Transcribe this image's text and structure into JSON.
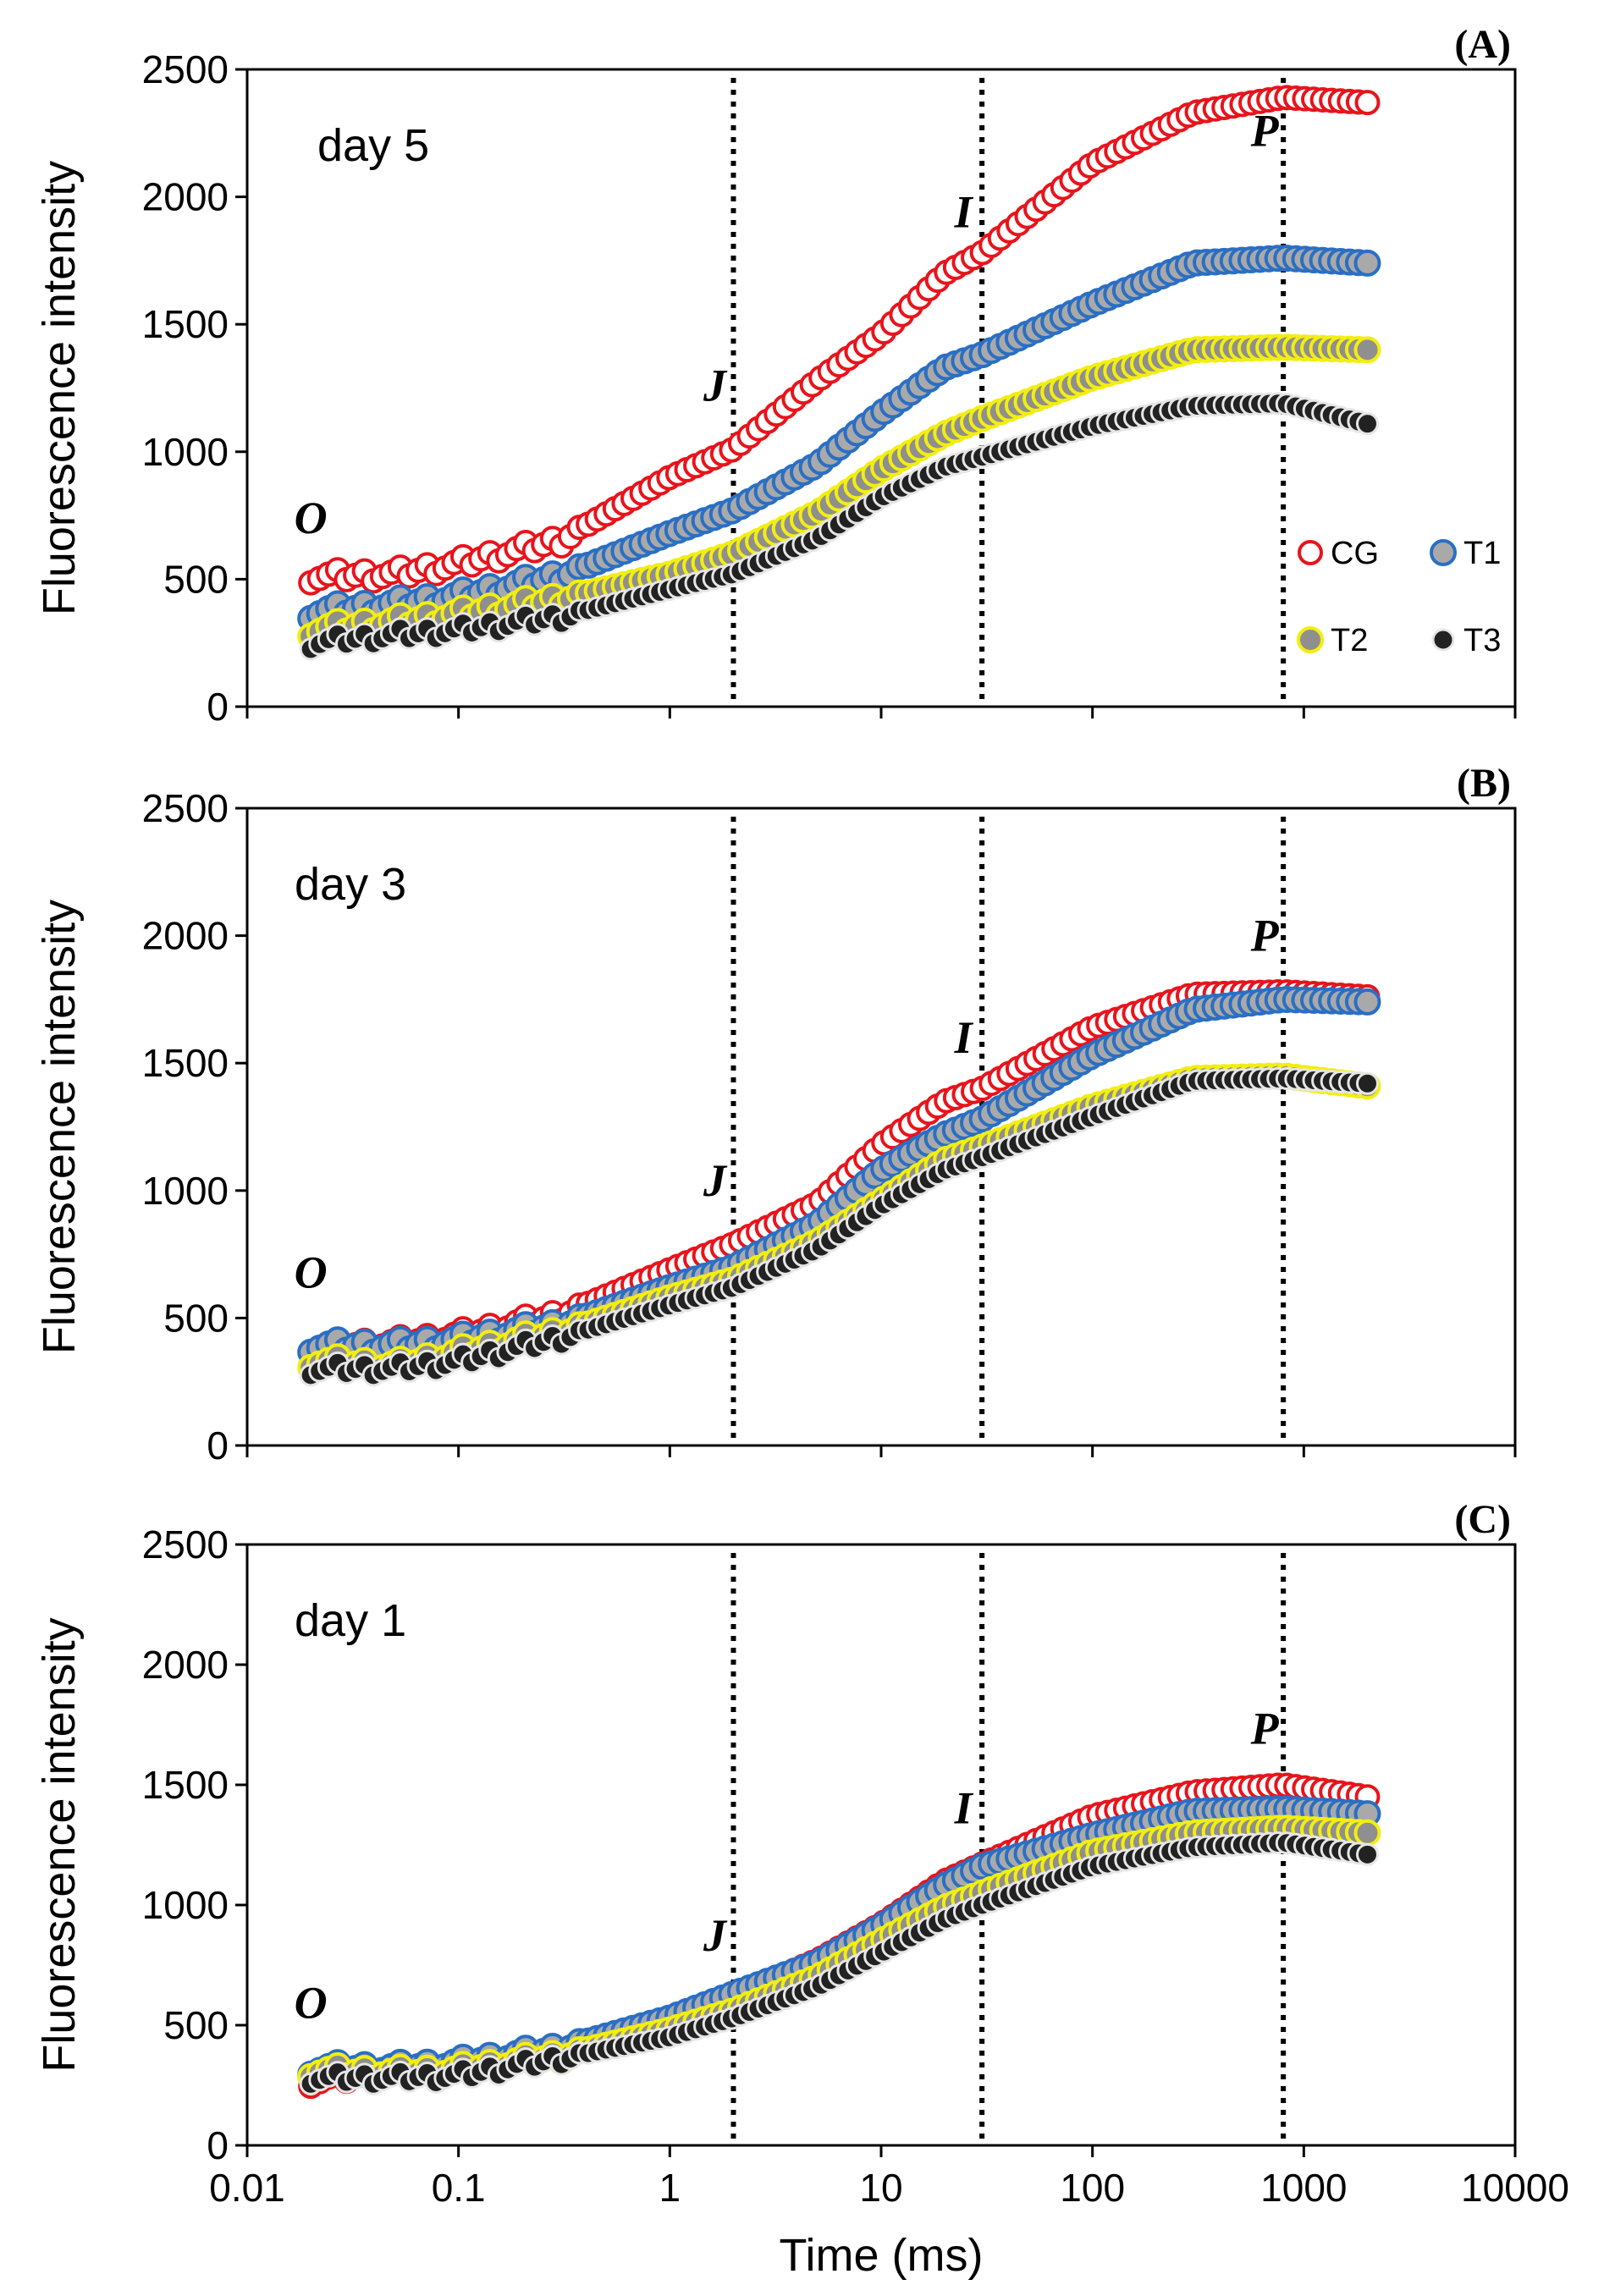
{
  "chart_data": [
    {
      "type": "scatter",
      "panel_label": "(A)",
      "day_label": "day 5",
      "ylabel": "Fluorescence intensity",
      "xlabel": "",
      "xscale": "log",
      "xlim": [
        0.01,
        10000
      ],
      "ylim": [
        0,
        2500
      ],
      "yticks": [
        "0",
        "500",
        "1000",
        "1500",
        "2000",
        "2500"
      ],
      "xticks": [],
      "phase_markers": [
        {
          "label": "O",
          "x": 0.02,
          "y": 680
        },
        {
          "label": "J",
          "x": 2,
          "y": 1200
        },
        {
          "label": "I",
          "x": 30,
          "y": 1880
        },
        {
          "label": "P",
          "x": 800,
          "y": 2200
        }
      ],
      "vlines_ms": [
        2,
        30,
        800
      ],
      "legend": {
        "position": "right",
        "entries": [
          "CG",
          "T1",
          "T2",
          "T3"
        ]
      },
      "series": [
        {
          "name": "CG",
          "style": "open-red",
          "anchors": [
            [
              0.02,
              510
            ],
            [
              0.05,
              520
            ],
            [
              0.1,
              560
            ],
            [
              0.3,
              650
            ],
            [
              1,
              900
            ],
            [
              2,
              1010
            ],
            [
              5,
              1280
            ],
            [
              10,
              1460
            ],
            [
              20,
              1700
            ],
            [
              30,
              1780
            ],
            [
              100,
              2130
            ],
            [
              300,
              2330
            ],
            [
              800,
              2390
            ],
            [
              2000,
              2370
            ]
          ]
        },
        {
          "name": "T1",
          "style": "gray-blue",
          "anchors": [
            [
              0.02,
              370
            ],
            [
              0.05,
              400
            ],
            [
              0.1,
              430
            ],
            [
              0.3,
              510
            ],
            [
              1,
              680
            ],
            [
              2,
              770
            ],
            [
              5,
              950
            ],
            [
              10,
              1150
            ],
            [
              20,
              1330
            ],
            [
              30,
              1380
            ],
            [
              100,
              1580
            ],
            [
              300,
              1740
            ],
            [
              800,
              1760
            ],
            [
              2000,
              1740
            ]
          ]
        },
        {
          "name": "T2",
          "style": "gray-yellow",
          "anchors": [
            [
              0.02,
              300
            ],
            [
              0.05,
              330
            ],
            [
              0.1,
              360
            ],
            [
              0.3,
              420
            ],
            [
              1,
              520
            ],
            [
              2,
              600
            ],
            [
              5,
              760
            ],
            [
              10,
              930
            ],
            [
              20,
              1070
            ],
            [
              30,
              1130
            ],
            [
              100,
              1290
            ],
            [
              300,
              1400
            ],
            [
              800,
              1410
            ],
            [
              2000,
              1400
            ]
          ]
        },
        {
          "name": "T3",
          "style": "black-white",
          "anchors": [
            [
              0.02,
              250
            ],
            [
              0.05,
              280
            ],
            [
              0.1,
              300
            ],
            [
              0.3,
              350
            ],
            [
              1,
              460
            ],
            [
              2,
              520
            ],
            [
              5,
              660
            ],
            [
              10,
              820
            ],
            [
              20,
              940
            ],
            [
              30,
              980
            ],
            [
              100,
              1100
            ],
            [
              300,
              1180
            ],
            [
              800,
              1190
            ],
            [
              2000,
              1110
            ]
          ]
        }
      ]
    },
    {
      "type": "scatter",
      "panel_label": "(B)",
      "day_label": "day 3",
      "ylabel": "Fluorescence intensity",
      "xlabel": "",
      "xscale": "log",
      "xlim": [
        0.01,
        10000
      ],
      "ylim": [
        0,
        2500
      ],
      "yticks": [
        "0",
        "500",
        "1000",
        "1500",
        "2000",
        "2500"
      ],
      "xticks": [],
      "phase_markers": [
        {
          "label": "O",
          "x": 0.02,
          "y": 620
        },
        {
          "label": "J",
          "x": 2,
          "y": 980
        },
        {
          "label": "I",
          "x": 30,
          "y": 1540
        },
        {
          "label": "P",
          "x": 800,
          "y": 1940
        }
      ],
      "vlines_ms": [
        2,
        30,
        800
      ],
      "legend": null,
      "series": [
        {
          "name": "CG",
          "style": "open-red",
          "anchors": [
            [
              0.02,
              390
            ],
            [
              0.05,
              400
            ],
            [
              0.1,
              430
            ],
            [
              0.3,
              510
            ],
            [
              1,
              690
            ],
            [
              2,
              790
            ],
            [
              5,
              950
            ],
            [
              10,
              1180
            ],
            [
              20,
              1350
            ],
            [
              30,
              1400
            ],
            [
              100,
              1640
            ],
            [
              300,
              1770
            ],
            [
              800,
              1780
            ],
            [
              2000,
              1760
            ]
          ]
        },
        {
          "name": "T1",
          "style": "gray-blue",
          "anchors": [
            [
              0.02,
              390
            ],
            [
              0.05,
              390
            ],
            [
              0.1,
              410
            ],
            [
              0.3,
              470
            ],
            [
              1,
              620
            ],
            [
              2,
              700
            ],
            [
              5,
              870
            ],
            [
              10,
              1080
            ],
            [
              20,
              1220
            ],
            [
              30,
              1280
            ],
            [
              100,
              1530
            ],
            [
              300,
              1710
            ],
            [
              800,
              1750
            ],
            [
              2000,
              1740
            ]
          ]
        },
        {
          "name": "T2",
          "style": "gray-yellow",
          "anchors": [
            [
              0.02,
              330
            ],
            [
              0.05,
              310
            ],
            [
              0.1,
              360
            ],
            [
              0.3,
              440
            ],
            [
              1,
              580
            ],
            [
              2,
              650
            ],
            [
              5,
              800
            ],
            [
              10,
              960
            ],
            [
              20,
              1120
            ],
            [
              30,
              1170
            ],
            [
              100,
              1330
            ],
            [
              300,
              1440
            ],
            [
              800,
              1450
            ],
            [
              2000,
              1410
            ]
          ]
        },
        {
          "name": "T3",
          "style": "black-white",
          "anchors": [
            [
              0.02,
              300
            ],
            [
              0.05,
              300
            ],
            [
              0.1,
              330
            ],
            [
              0.3,
              420
            ],
            [
              1,
              550
            ],
            [
              2,
              620
            ],
            [
              5,
              770
            ],
            [
              10,
              940
            ],
            [
              20,
              1080
            ],
            [
              30,
              1130
            ],
            [
              100,
              1290
            ],
            [
              300,
              1430
            ],
            [
              800,
              1440
            ],
            [
              2000,
              1420
            ]
          ]
        }
      ]
    },
    {
      "type": "scatter",
      "panel_label": "(C)",
      "day_label": "day 1",
      "ylabel": "Fluorescence intensity",
      "xlabel": "Time (ms)",
      "xscale": "log",
      "xlim": [
        0.01,
        10000
      ],
      "ylim": [
        0,
        2500
      ],
      "yticks": [
        "0",
        "500",
        "1000",
        "1500",
        "2000",
        "2500"
      ],
      "xticks": [
        "0.01",
        "0.1",
        "1",
        "10",
        "100",
        "1000",
        "10000"
      ],
      "phase_markers": [
        {
          "label": "O",
          "x": 0.02,
          "y": 530
        },
        {
          "label": "J",
          "x": 2,
          "y": 810
        },
        {
          "label": "I",
          "x": 30,
          "y": 1340
        },
        {
          "label": "P",
          "x": 800,
          "y": 1670
        }
      ],
      "vlines_ms": [
        2,
        30,
        800
      ],
      "legend": null,
      "series": [
        {
          "name": "CG",
          "style": "open-red",
          "anchors": [
            [
              0.02,
              270
            ],
            [
              0.05,
              300
            ],
            [
              0.1,
              330
            ],
            [
              0.3,
              390
            ],
            [
              1,
              530
            ],
            [
              2,
              620
            ],
            [
              5,
              770
            ],
            [
              10,
              920
            ],
            [
              20,
              1100
            ],
            [
              30,
              1170
            ],
            [
              100,
              1370
            ],
            [
              300,
              1470
            ],
            [
              800,
              1500
            ],
            [
              2000,
              1450
            ]
          ]
        },
        {
          "name": "T1",
          "style": "gray-blue",
          "anchors": [
            [
              0.02,
              320
            ],
            [
              0.05,
              320
            ],
            [
              0.1,
              340
            ],
            [
              0.3,
              400
            ],
            [
              1,
              530
            ],
            [
              2,
              630
            ],
            [
              5,
              760
            ],
            [
              10,
              910
            ],
            [
              20,
              1080
            ],
            [
              30,
              1160
            ],
            [
              100,
              1290
            ],
            [
              300,
              1390
            ],
            [
              800,
              1400
            ],
            [
              2000,
              1380
            ]
          ]
        },
        {
          "name": "T2",
          "style": "gray-yellow",
          "anchors": [
            [
              0.02,
              310
            ],
            [
              0.05,
              300
            ],
            [
              0.1,
              310
            ],
            [
              0.3,
              370
            ],
            [
              1,
              480
            ],
            [
              2,
              560
            ],
            [
              5,
              700
            ],
            [
              10,
              850
            ],
            [
              20,
              990
            ],
            [
              30,
              1050
            ],
            [
              100,
              1220
            ],
            [
              300,
              1300
            ],
            [
              800,
              1320
            ],
            [
              2000,
              1300
            ]
          ]
        },
        {
          "name": "T3",
          "style": "black-white",
          "anchors": [
            [
              0.02,
              280
            ],
            [
              0.05,
              280
            ],
            [
              0.1,
              290
            ],
            [
              0.3,
              360
            ],
            [
              1,
              450
            ],
            [
              2,
              530
            ],
            [
              5,
              660
            ],
            [
              10,
              800
            ],
            [
              20,
              940
            ],
            [
              30,
              1000
            ],
            [
              100,
              1160
            ],
            [
              300,
              1240
            ],
            [
              800,
              1260
            ],
            [
              2000,
              1210
            ]
          ]
        }
      ]
    }
  ]
}
